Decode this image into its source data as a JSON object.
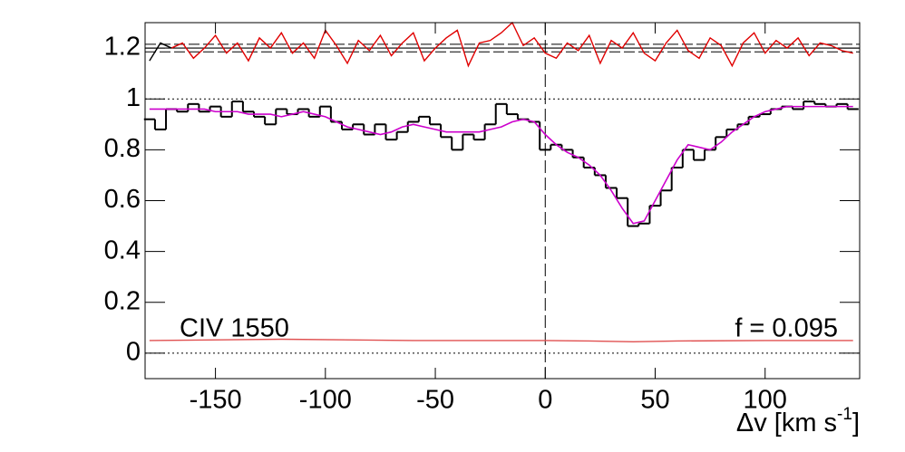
{
  "chart_data": {
    "type": "step",
    "annotations": {
      "left": "CIV 1550",
      "right": "f = 0.095"
    },
    "x_label": {
      "text": "Δv [km s",
      "sup": "-1",
      "close": "]"
    },
    "xlim": [
      -182,
      143
    ],
    "ylim": [
      -0.1,
      1.3
    ],
    "xticks": [
      -150,
      -100,
      -50,
      0,
      50,
      100
    ],
    "yticks": [
      0,
      0.2,
      0.4,
      0.6,
      0.8,
      1,
      1.2
    ],
    "bin_width": 5,
    "vline": 0,
    "hlines": {
      "solid": [
        1.2
      ],
      "dashed": [
        1.185,
        1.215
      ],
      "dotted": [
        0,
        1
      ]
    },
    "x": [
      -180,
      -175,
      -170,
      -165,
      -160,
      -155,
      -150,
      -145,
      -140,
      -135,
      -130,
      -125,
      -120,
      -115,
      -110,
      -105,
      -100,
      -95,
      -90,
      -85,
      -80,
      -75,
      -70,
      -65,
      -60,
      -55,
      -50,
      -45,
      -40,
      -35,
      -30,
      -25,
      -20,
      -15,
      -10,
      -5,
      0,
      5,
      10,
      15,
      20,
      25,
      30,
      35,
      40,
      45,
      50,
      55,
      60,
      65,
      70,
      75,
      80,
      85,
      90,
      95,
      100,
      105,
      110,
      115,
      120,
      125,
      130,
      135,
      140
    ],
    "series": [
      {
        "name": "flux",
        "color": "#000000",
        "style": "step",
        "values": [
          0.92,
          0.88,
          0.96,
          0.95,
          0.98,
          0.95,
          0.97,
          0.93,
          0.99,
          0.95,
          0.93,
          0.9,
          0.96,
          0.94,
          0.96,
          0.93,
          0.97,
          0.91,
          0.88,
          0.9,
          0.86,
          0.9,
          0.84,
          0.87,
          0.91,
          0.93,
          0.9,
          0.85,
          0.8,
          0.86,
          0.84,
          0.9,
          0.98,
          0.94,
          0.92,
          0.91,
          0.8,
          0.82,
          0.8,
          0.77,
          0.73,
          0.7,
          0.65,
          0.61,
          0.5,
          0.51,
          0.58,
          0.64,
          0.73,
          0.8,
          0.76,
          0.8,
          0.85,
          0.88,
          0.9,
          0.93,
          0.94,
          0.96,
          0.97,
          0.96,
          0.99,
          0.98,
          0.97,
          0.98,
          0.96
        ]
      },
      {
        "name": "model",
        "color": "#cc00cc",
        "style": "line",
        "values": [
          0.96,
          0.96,
          0.96,
          0.96,
          0.96,
          0.96,
          0.95,
          0.95,
          0.95,
          0.94,
          0.94,
          0.94,
          0.93,
          0.94,
          0.95,
          0.94,
          0.93,
          0.91,
          0.89,
          0.88,
          0.87,
          0.86,
          0.87,
          0.89,
          0.9,
          0.89,
          0.88,
          0.87,
          0.87,
          0.87,
          0.87,
          0.88,
          0.89,
          0.91,
          0.92,
          0.91,
          0.86,
          0.82,
          0.79,
          0.77,
          0.74,
          0.7,
          0.64,
          0.57,
          0.51,
          0.52,
          0.6,
          0.68,
          0.76,
          0.82,
          0.81,
          0.8,
          0.83,
          0.87,
          0.9,
          0.93,
          0.95,
          0.96,
          0.97,
          0.97,
          0.97,
          0.97,
          0.97,
          0.97,
          0.97
        ]
      },
      {
        "name": "residual",
        "color": "#e00000",
        "style": "line",
        "values": [
          null,
          null,
          1.2,
          1.22,
          1.16,
          1.2,
          1.25,
          1.18,
          1.22,
          1.15,
          1.24,
          1.2,
          1.26,
          1.18,
          1.22,
          1.16,
          1.27,
          1.21,
          1.14,
          1.23,
          1.19,
          1.25,
          1.17,
          1.22,
          1.26,
          1.15,
          1.2,
          1.24,
          1.27,
          1.13,
          1.22,
          1.23,
          1.26,
          1.3,
          1.21,
          1.24,
          1.18,
          1.16,
          1.22,
          1.19,
          1.25,
          1.14,
          1.23,
          1.2,
          1.26,
          1.18,
          1.15,
          1.22,
          1.27,
          1.19,
          1.16,
          1.24,
          1.21,
          1.13,
          1.22,
          1.26,
          1.18,
          1.23,
          1.2,
          1.24,
          1.17,
          1.22,
          1.21,
          1.19,
          1.18
        ]
      },
      {
        "name": "residual_masked",
        "color": "#000000",
        "style": "line",
        "x": [
          -180,
          -175,
          -170
        ],
        "values": [
          1.15,
          1.22,
          1.2
        ]
      },
      {
        "name": "error",
        "color": "#e05050",
        "style": "line",
        "x": [
          -180,
          -120,
          -60,
          0,
          20,
          40,
          60,
          100,
          140
        ],
        "values": [
          0.05,
          0.055,
          0.05,
          0.05,
          0.048,
          0.045,
          0.048,
          0.05,
          0.05
        ]
      }
    ]
  }
}
